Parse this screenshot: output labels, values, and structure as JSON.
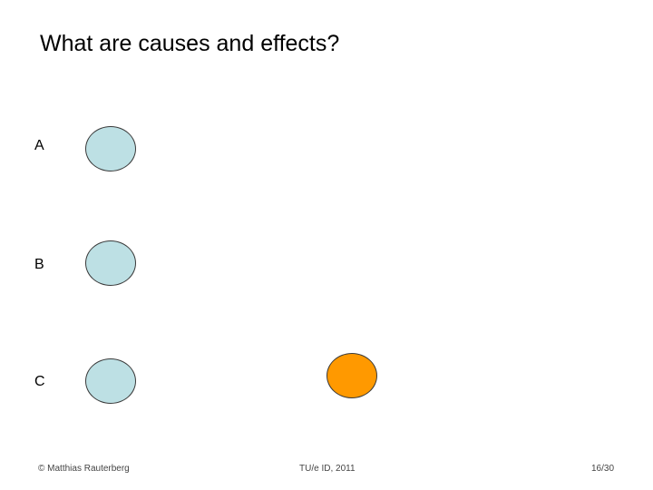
{
  "slide": {
    "title": "What are causes and effects?"
  },
  "rows": [
    {
      "label": "A"
    },
    {
      "label": "B"
    },
    {
      "label": "C"
    }
  ],
  "colors": {
    "cause_fill": "#bde0e4",
    "effect_fill": "#ff9900"
  },
  "footer": {
    "author": "© Matthias Rauterberg",
    "course": "TU/e ID, 2011",
    "page": "16/30"
  }
}
